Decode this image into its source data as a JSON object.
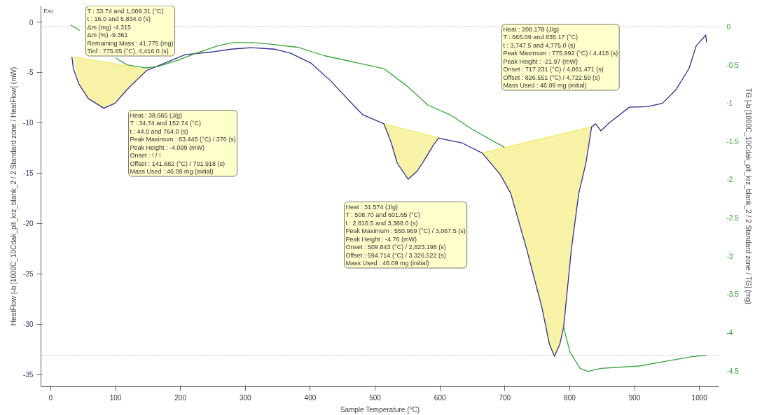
{
  "chart_data": {
    "type": "line",
    "xlabel": "Sample Temperature (°C)",
    "ylabel": "HeatFlow |-b [1000C_10Cdak_plt_krz_blank_2 / 2 Standard zone / HeatFlow] (mW)",
    "y2label": "TG |-b [1000C_10Cdak_plt_krz_blank_2 / 2 Standard zone / TG] (mg)",
    "xlim": [
      -15,
      1030
    ],
    "ylim": [
      -36.2,
      1.6
    ],
    "y2lim": [
      -4.71,
      0.27
    ],
    "xticks": [
      0,
      100,
      200,
      300,
      400,
      500,
      600,
      700,
      800,
      900,
      1000
    ],
    "yticks": [
      0,
      -5,
      -10,
      -15,
      -20,
      -25,
      -30,
      -35
    ],
    "y2ticks": [
      0,
      -0.5,
      -1,
      -1.5,
      -2,
      -2.5,
      -3,
      -3.5,
      -4,
      -4.5
    ],
    "grid": false,
    "series": [
      {
        "color": "#f2ea6a",
        "x": [
          34.7,
          43,
          58,
          82,
          99,
          120,
          148
        ],
        "upper": [
          -3.45,
          -3.55,
          -3.7,
          -3.96,
          -4.15,
          -4.38,
          -4.8
        ],
        "lower": [
          -3.45,
          -6.1,
          -7.6,
          -8.55,
          -8.07,
          -6.55,
          -4.8
        ],
        "values": [
          -3.45,
          -3.55,
          -3.7,
          -3.96,
          -4.15,
          -4.38,
          -4.8
        ]
      },
      {
        "color": "#f2ea6a",
        "x": [
          513.6,
          525,
          534,
          551,
          565,
          576,
          590,
          598
        ],
        "upper": [
          -10.1,
          -10.29,
          -10.44,
          -10.72,
          -10.95,
          -11.14,
          -11.37,
          -11.5
        ],
        "lower": [
          -10.1,
          -12.0,
          -14.0,
          -15.6,
          -14.8,
          -13.7,
          -12.2,
          -11.5
        ],
        "values": [
          -10.1,
          -10.29,
          -10.44,
          -10.72,
          -10.95,
          -11.14,
          -11.37,
          -11.5
        ]
      },
      {
        "color": "#f2ea6a",
        "x": [
          665,
          692.6,
          709,
          733,
          757,
          768.8,
          776.5,
          784.7,
          790.6,
          802.5,
          814,
          825,
          833.8
        ],
        "upper": [
          -13.0,
          -12.57,
          -12.32,
          -11.95,
          -11.58,
          -11.4,
          -11.28,
          -11.15,
          -11.06,
          -10.88,
          -10.7,
          -10.53,
          -10.4
        ],
        "lower": [
          -13.0,
          -15.1,
          -17.0,
          -22.4,
          -28.3,
          -32.0,
          -33.2,
          -32.0,
          -30.3,
          -22.6,
          -17.0,
          -14.0,
          -10.4
        ],
        "values": [
          -13.0,
          -12.57,
          -12.32,
          -11.95,
          -11.58,
          -11.4,
          -11.28,
          -11.15,
          -11.06,
          -10.88,
          -10.7,
          -10.53,
          -10.4
        ]
      },
      {
        "color": "#2e2e8f",
        "x": [
          32.7,
          34.8,
          43,
          58,
          82,
          99,
          120,
          148,
          176,
          207,
          248,
          278,
          309,
          345,
          370,
          401,
          432,
          457,
          481,
          513.6,
          525,
          534,
          551,
          565,
          576,
          590,
          598,
          606.6,
          634,
          665,
          692.6,
          709,
          733,
          757,
          768.8,
          776.5,
          784.7,
          790.6,
          802.5,
          814,
          825,
          833.8,
          840,
          848,
          861,
          892,
          919.6,
          943,
          964,
          984,
          995,
          1009.7,
          1011
        ],
        "values": [
          -3.45,
          -4.6,
          -6.1,
          -7.6,
          -8.55,
          -8.07,
          -6.55,
          -4.8,
          -4.07,
          -3.24,
          -2.97,
          -2.69,
          -2.55,
          -2.69,
          -3.1,
          -4.07,
          -5.86,
          -7.6,
          -9.2,
          -10.1,
          -12.0,
          -14.0,
          -15.6,
          -14.8,
          -13.7,
          -12.2,
          -11.5,
          -11.65,
          -12.0,
          -13.0,
          -15.1,
          -17.0,
          -22.4,
          -28.3,
          -32.0,
          -33.2,
          -32.0,
          -30.3,
          -22.6,
          -17.0,
          -14.0,
          -10.4,
          -10.1,
          -10.8,
          -10.0,
          -8.45,
          -8.4,
          -8.07,
          -6.7,
          -4.6,
          -2.35,
          -1.3,
          -2.0
        ]
      },
      {
        "axis": "y2",
        "color": "#3aa53a",
        "x": [
          30.7,
          45,
          76.7,
          100,
          117.6,
          145,
          165.7,
          196,
          224,
          257.8,
          281,
          309,
          329,
          380.6,
          421.5,
          513.6,
          548,
          582,
          617,
          651,
          699.5,
          745,
          790.6,
          800.5,
          816,
          828,
          848,
          907,
          947,
          986.8,
          1010.7
        ],
        "values": [
          0.02,
          -0.05,
          null,
          -0.41,
          -0.5,
          -0.54,
          -0.52,
          -0.44,
          -0.35,
          -0.25,
          -0.21,
          -0.21,
          -0.22,
          -0.27,
          -0.38,
          -0.55,
          -0.77,
          -1.03,
          -1.16,
          -1.35,
          -1.58,
          null,
          -3.93,
          -4.26,
          -4.47,
          -4.51,
          -4.47,
          -4.44,
          -4.38,
          -4.32,
          -4.3
        ]
      }
    ],
    "ref_lines": [
      {
        "axis": "y2",
        "value": 0,
        "color": "#999999",
        "line_style": "dotted"
      },
      {
        "axis": "y2",
        "value": -4.3,
        "color": "#999999",
        "line_style": "dotted"
      }
    ],
    "annotations": [
      "T : 33.74 and 1,009.31 (°C)\nt : 16.0 and 5,834.0 (s)\nΔm (mg) -4.315\nΔm (%) -9.361\nRemaining Mass : 41.775 (mg)\nTinf : 775.65 (°C), 4,416.0 (s)",
      "Heat : 38.665 (J/g)\nT : 34.74 and 152.74 (°C)\nt : 44.0 and 764.0 (s)\nPeak Maximum : 83.445 (°C) / 376 (s)\nPeak Height : -4.099 (mW)\nOnset : ! / !\nOffset : 141.682 (°C) / 701.918 (s)\nMass Used : 46.09 mg (initial)",
      "Heat : 31.574 (J/g)\nT : 508.70 and 601.65 (°C)\nt : 2,816.5 and 3,368.0 (s)\nPeak Maximum : 550.969 (°C) / 3,067.5 (s)\nPeak Height : -4.76 (mW)\nOnset : 509.843 (°C) / 2,823.198 (s)\nOffset : 594.714 (°C) / 3,326.522 (s)\nMass Used : 46.09 mg (initial)",
      "Heat : 208.178 (J/g)\nT : 665.09 and 835.17 (°C)\nt : 3,747.5 and 4,775.0 (s)\nPeak Maximum : 775.992 (°C) / 4,418 (s)\nPeak Height : -21.97 (mW)\nOnset : 717.231 (°C) / 4,061.471 (s)\nOffset : 826.551 (°C) / 4,722.59 (s)\nMass Used : 46.09 mg (initial)",
      "Exo"
    ]
  }
}
